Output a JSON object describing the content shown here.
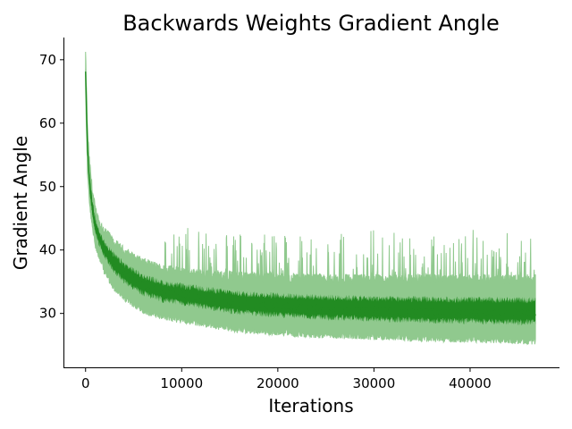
{
  "chart_data": {
    "type": "line",
    "title": "Backwards Weights Gradient Angle",
    "xlabel": "Iterations",
    "ylabel": "Gradient Angle",
    "xlim": [
      -2300,
      49300
    ],
    "ylim": [
      21.5,
      73.5
    ],
    "xticks": [
      0,
      10000,
      20000,
      30000,
      40000
    ],
    "yticks": [
      30,
      40,
      50,
      60,
      70
    ],
    "grid": false,
    "legend": "none",
    "colors": {
      "series_line": "#228b22",
      "series_band": "#90c98e"
    },
    "series": [
      {
        "role": "mean",
        "x": [
          0,
          100,
          200,
          400,
          700,
          1000,
          1500,
          2000,
          3000,
          4000,
          5000,
          6000,
          7000,
          8000,
          10000,
          12000,
          14000,
          16000,
          18000,
          20000,
          22000,
          24000,
          26000,
          28000,
          30000,
          32000,
          34000,
          36000,
          38000,
          40000,
          42000,
          44000,
          46000,
          46800
        ],
        "y": [
          68,
          62,
          56,
          51,
          46.5,
          44,
          41.5,
          40,
          38,
          36.5,
          35.5,
          34.5,
          34,
          33.5,
          33,
          32.5,
          32,
          31.5,
          31.3,
          31.1,
          31,
          30.8,
          30.7,
          30.6,
          30.5,
          30.4,
          30.3,
          30.3,
          30.2,
          30.2,
          30.1,
          30.1,
          30.1,
          30.1
        ]
      },
      {
        "role": "lower-band",
        "x": [
          0,
          100,
          200,
          400,
          700,
          1000,
          1500,
          2000,
          3000,
          4000,
          5000,
          6000,
          7000,
          8000,
          10000,
          12000,
          14000,
          16000,
          18000,
          20000,
          22000,
          24000,
          26000,
          28000,
          30000,
          32000,
          34000,
          36000,
          38000,
          40000,
          42000,
          44000,
          46000,
          46800
        ],
        "y": [
          66,
          59,
          53,
          48,
          44,
          41.5,
          39,
          37,
          34.5,
          33,
          32,
          31,
          30.5,
          30,
          29.5,
          29,
          28.5,
          28,
          27.8,
          27.6,
          27.4,
          27.2,
          27.1,
          27,
          26.9,
          26.8,
          26.7,
          26.6,
          26.5,
          26.5,
          26.4,
          26.3,
          26.2,
          26.2
        ]
      },
      {
        "role": "upper-band",
        "x": [
          0,
          100,
          200,
          400,
          700,
          1000,
          1500,
          2000,
          3000,
          4000,
          5000,
          6000,
          7000,
          8000,
          10000,
          12000,
          14000,
          16000,
          18000,
          20000,
          22000,
          24000,
          26000,
          28000,
          30000,
          32000,
          34000,
          36000,
          38000,
          40000,
          42000,
          44000,
          46000,
          46800
        ],
        "y": [
          71,
          65,
          59,
          54,
          49.5,
          46.5,
          44,
          43,
          41,
          39.8,
          38.8,
          38,
          37.5,
          37,
          36.5,
          36.2,
          36,
          35.8,
          35.7,
          35.6,
          35.5,
          35.5,
          35.4,
          35.4,
          35.4,
          35.4,
          35.4,
          35.4,
          35.4,
          35.4,
          35.4,
          35.4,
          35.4,
          35.4
        ]
      }
    ]
  }
}
